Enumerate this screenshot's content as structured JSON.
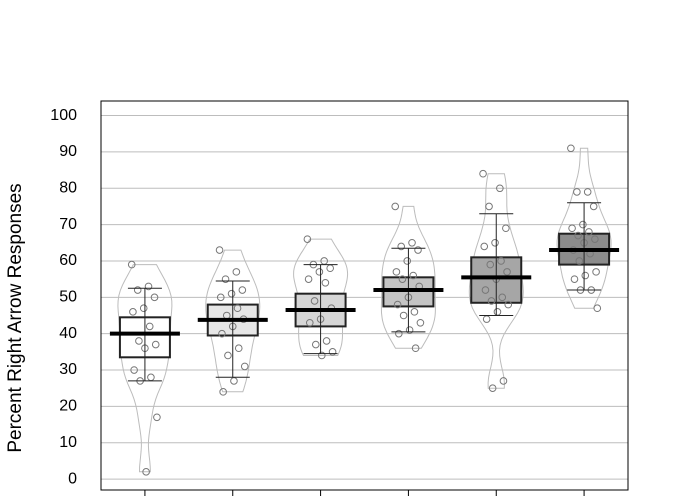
{
  "chart_data": {
    "type": "box",
    "ylabel": "Percent Right Arrow Responses",
    "categories": [
      null,
      null,
      null,
      null,
      null,
      null
    ],
    "ylim": [
      -3,
      104
    ],
    "yticks": [
      0,
      10,
      20,
      30,
      40,
      50,
      60,
      70,
      80,
      90,
      100
    ],
    "grid": true,
    "groups": [
      {
        "color": "#ffffff",
        "mean": 40,
        "box_low": 33.5,
        "box_high": 44.5,
        "whisker_low": 27,
        "whisker_high": 52.5,
        "points": [
          59,
          53,
          52,
          50,
          47,
          46,
          42,
          38,
          37,
          36,
          30,
          28,
          27,
          17,
          2
        ]
      },
      {
        "color": "#e6e6e6",
        "mean": 43.8,
        "box_low": 39.5,
        "box_high": 48,
        "whisker_low": 28,
        "whisker_high": 54.5,
        "points": [
          63,
          57,
          55,
          52,
          51,
          50,
          47,
          45,
          44,
          42,
          40,
          36,
          34,
          31,
          27,
          24
        ]
      },
      {
        "color": "#d6d6d6",
        "mean": 46.5,
        "box_low": 42,
        "box_high": 51,
        "whisker_low": 34.5,
        "whisker_high": 59,
        "points": [
          66,
          60,
          59,
          58,
          57,
          55,
          54,
          49,
          47,
          44,
          43,
          38,
          37,
          35,
          34
        ]
      },
      {
        "color": "#c4c4c4",
        "mean": 52,
        "box_low": 47.5,
        "box_high": 55.5,
        "whisker_low": 40.5,
        "whisker_high": 63.5,
        "points": [
          75,
          65,
          64,
          63,
          60,
          57,
          56,
          55,
          53,
          50,
          48,
          46,
          45,
          43,
          41,
          40,
          36
        ]
      },
      {
        "color": "#a6a6a6",
        "mean": 55.5,
        "box_low": 48.5,
        "box_high": 61,
        "whisker_low": 45,
        "whisker_high": 73,
        "points": [
          84,
          80,
          75,
          69,
          65,
          64,
          60,
          59,
          57,
          55,
          52,
          50,
          49,
          48,
          46,
          44,
          27,
          25
        ]
      },
      {
        "color": "#8c8c8c",
        "mean": 63,
        "box_low": 59,
        "box_high": 67.5,
        "whisker_low": 52,
        "whisker_high": 76,
        "points": [
          91,
          79,
          79,
          75,
          70,
          69,
          68,
          67,
          66,
          65,
          63,
          62,
          60,
          57,
          56,
          55,
          52,
          52,
          47
        ]
      }
    ]
  }
}
